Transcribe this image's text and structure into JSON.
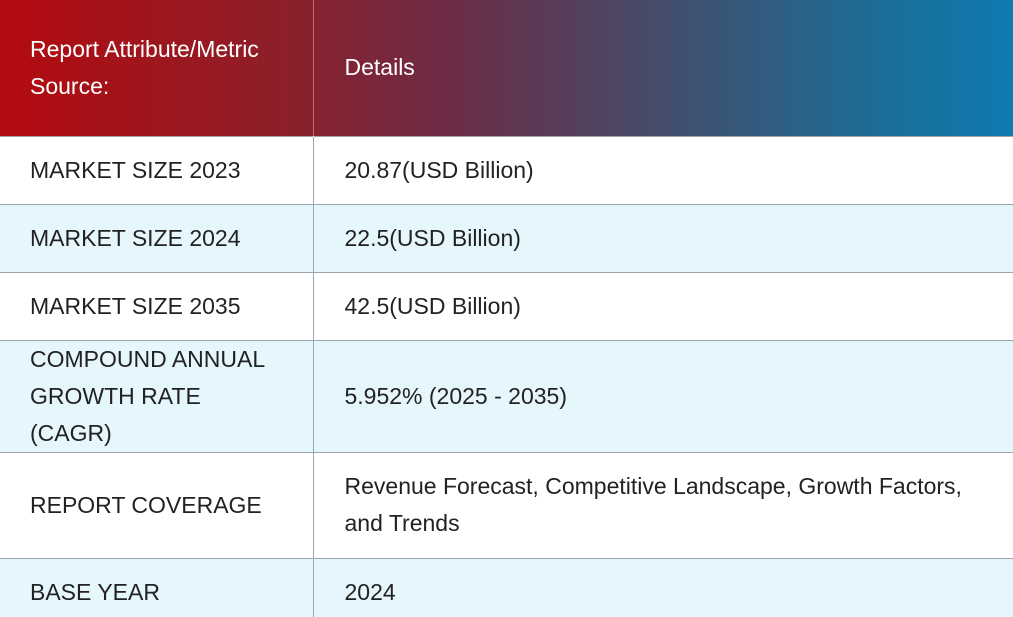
{
  "table": {
    "header": {
      "attribute_label": "Report Attribute/Metric Source:",
      "details_label": "Details"
    },
    "rows": [
      {
        "label": "MARKET SIZE 2023",
        "value": "20.87(USD Billion)"
      },
      {
        "label": "MARKET SIZE 2024",
        "value": "22.5(USD Billion)"
      },
      {
        "label": "MARKET SIZE 2035",
        "value": "42.5(USD Billion)"
      },
      {
        "label": "COMPOUND ANNUAL GROWTH RATE (CAGR)",
        "value": "5.952% (2025 - 2035)"
      },
      {
        "label": "REPORT COVERAGE",
        "value": "Revenue Forecast, Competitive Landscape, Growth Factors, and Trends"
      },
      {
        "label": "BASE YEAR",
        "value": "2024"
      }
    ]
  },
  "colors": {
    "header_gradient_start": "#b40a0f",
    "header_gradient_end": "#0f7ab0",
    "striped_row_background": "#e6f6fd",
    "row_divider": "#9aa5ad"
  }
}
